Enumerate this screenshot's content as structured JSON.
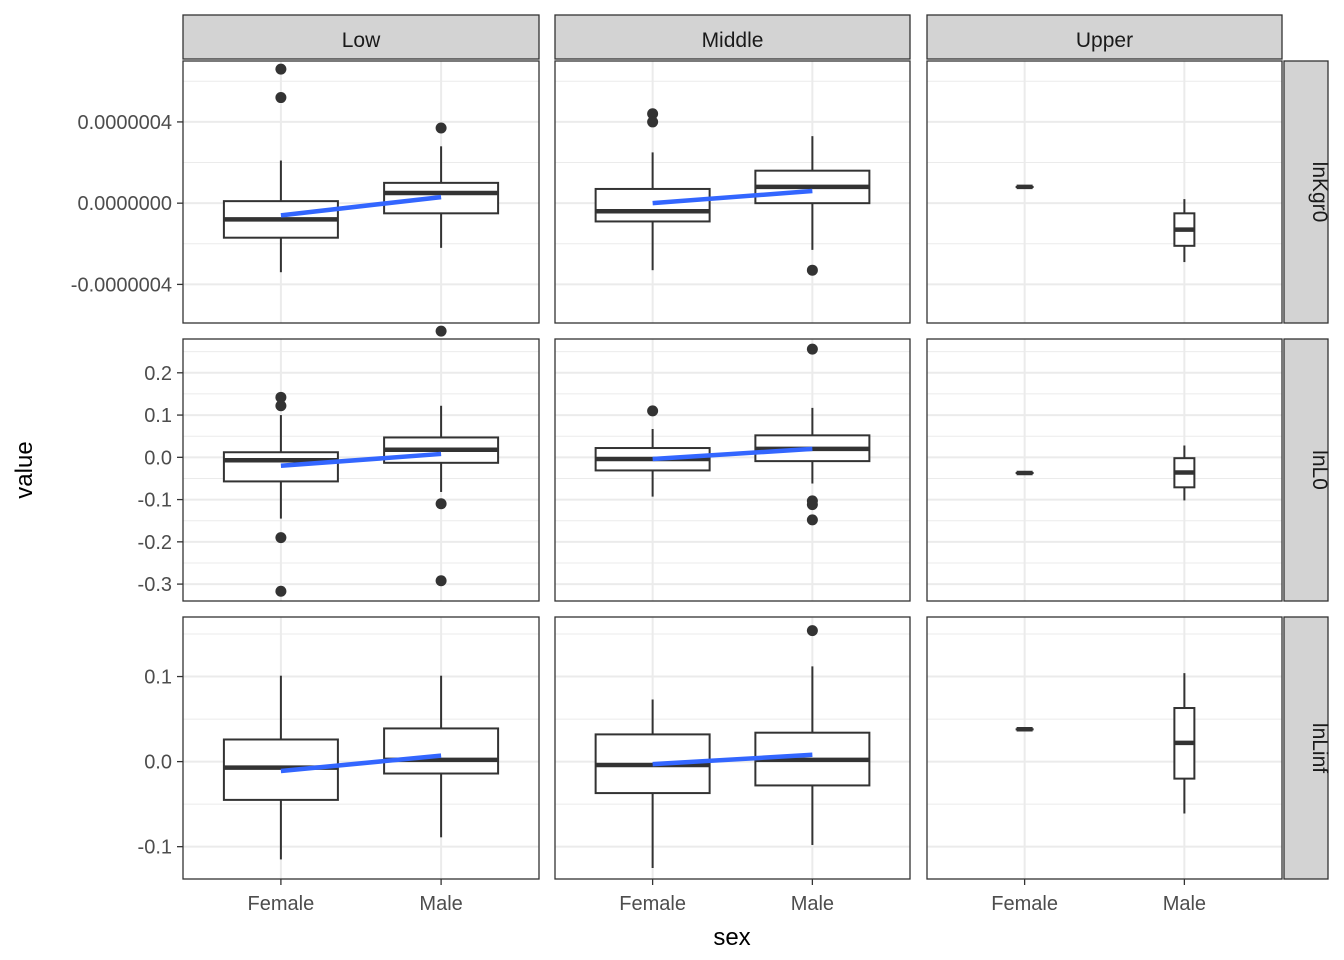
{
  "chart_data": {
    "type": "boxplot",
    "xlabel": "sex",
    "ylabel": "value",
    "categories": [
      "Female",
      "Male"
    ],
    "columns": [
      "Low",
      "Middle",
      "Upper"
    ],
    "rows": [
      {
        "label": "lnKgr0",
        "ylim": [
          -5.9e-07,
          7e-07
        ],
        "ticks": [
          -4e-07,
          0.0,
          4e-07
        ],
        "tick_labels": [
          "-0.0000004",
          "0.0000000",
          "0.0000004"
        ],
        "minor_ticks": [
          -6e-07,
          -2e-07,
          2e-07,
          6e-07
        ],
        "panels": [
          {
            "column": "Low",
            "boxes": [
              {
                "category": "Female",
                "lower": -3.4e-07,
                "q1": -1.7e-07,
                "median": -8e-08,
                "q3": 1e-08,
                "upper": 2.1e-07,
                "outliers": [
                  6.6e-07,
                  5.2e-07
                ]
              },
              {
                "category": "Male",
                "lower": -2.2e-07,
                "q1": -5e-08,
                "median": 5e-08,
                "q3": 1e-07,
                "upper": 2.8e-07,
                "outliers": [
                  3.7e-07,
                  -6.3e-07
                ]
              }
            ],
            "trend": [
              -6e-08,
              3e-08
            ]
          },
          {
            "column": "Middle",
            "boxes": [
              {
                "category": "Female",
                "lower": -3.3e-07,
                "q1": -9e-08,
                "median": -4e-08,
                "q3": 7e-08,
                "upper": 2.5e-07,
                "outliers": [
                  4.4e-07,
                  4e-07
                ]
              },
              {
                "category": "Male",
                "lower": -2.3e-07,
                "q1": 0.0,
                "median": 8e-08,
                "q3": 1.6e-07,
                "upper": 3.3e-07,
                "outliers": [
                  -3.3e-07
                ]
              }
            ],
            "trend": [
              0.0,
              6e-08
            ]
          },
          {
            "column": "Upper",
            "boxes": [
              {
                "category": "Female",
                "lower": 8e-08,
                "q1": 8e-08,
                "median": 8e-08,
                "q3": 8e-08,
                "upper": 8e-08,
                "outliers": []
              },
              {
                "category": "Male",
                "lower": -2.9e-07,
                "q1": -2.1e-07,
                "median": -1.3e-07,
                "q3": -5e-08,
                "upper": 2e-08,
                "outliers": []
              }
            ],
            "trend": null
          }
        ]
      },
      {
        "label": "lnL0",
        "ylim": [
          -0.34,
          0.28
        ],
        "ticks": [
          -0.3,
          -0.2,
          -0.1,
          0.0,
          0.1,
          0.2
        ],
        "tick_labels": [
          "-0.3",
          "-0.2",
          "-0.1",
          "0.0",
          "0.1",
          "0.2"
        ],
        "minor_ticks": [
          -0.25,
          -0.15,
          -0.05,
          0.05,
          0.15,
          0.25
        ],
        "panels": [
          {
            "column": "Low",
            "boxes": [
              {
                "category": "Female",
                "lower": -0.145,
                "q1": -0.057,
                "median": -0.007,
                "q3": 0.012,
                "upper": 0.1,
                "outliers": [
                  0.142,
                  0.122,
                  -0.19,
                  -0.317
                ]
              },
              {
                "category": "Male",
                "lower": -0.082,
                "q1": -0.013,
                "median": 0.018,
                "q3": 0.047,
                "upper": 0.122,
                "outliers": [
                  -0.11,
                  -0.292
                ]
              }
            ],
            "trend": [
              -0.02,
              0.008
            ]
          },
          {
            "column": "Middle",
            "boxes": [
              {
                "category": "Female",
                "lower": -0.093,
                "q1": -0.031,
                "median": -0.004,
                "q3": 0.022,
                "upper": 0.067,
                "outliers": [
                  0.11
                ]
              },
              {
                "category": "Male",
                "lower": -0.062,
                "q1": -0.009,
                "median": 0.02,
                "q3": 0.052,
                "upper": 0.117,
                "outliers": [
                  0.256,
                  -0.103,
                  -0.112,
                  -0.148
                ]
              }
            ],
            "trend": [
              -0.004,
              0.02
            ]
          },
          {
            "column": "Upper",
            "boxes": [
              {
                "category": "Female",
                "lower": -0.037,
                "q1": -0.037,
                "median": -0.037,
                "q3": -0.037,
                "upper": -0.037,
                "outliers": []
              },
              {
                "category": "Male",
                "lower": -0.102,
                "q1": -0.071,
                "median": -0.036,
                "q3": -0.002,
                "upper": 0.028,
                "outliers": []
              }
            ],
            "trend": null
          }
        ]
      },
      {
        "label": "lnLinf",
        "ylim": [
          -0.138,
          0.17
        ],
        "ticks": [
          -0.1,
          0.0,
          0.1
        ],
        "tick_labels": [
          "-0.1",
          "0.0",
          "0.1"
        ],
        "minor_ticks": [
          -0.05,
          0.05,
          0.15
        ],
        "panels": [
          {
            "column": "Low",
            "boxes": [
              {
                "category": "Female",
                "lower": -0.115,
                "q1": -0.045,
                "median": -0.007,
                "q3": 0.026,
                "upper": 0.101,
                "outliers": []
              },
              {
                "category": "Male",
                "lower": -0.089,
                "q1": -0.014,
                "median": 0.002,
                "q3": 0.039,
                "upper": 0.101,
                "outliers": []
              }
            ],
            "trend": [
              -0.011,
              0.007
            ]
          },
          {
            "column": "Middle",
            "boxes": [
              {
                "category": "Female",
                "lower": -0.125,
                "q1": -0.037,
                "median": -0.004,
                "q3": 0.032,
                "upper": 0.073,
                "outliers": []
              },
              {
                "category": "Male",
                "lower": -0.098,
                "q1": -0.028,
                "median": 0.002,
                "q3": 0.034,
                "upper": 0.112,
                "outliers": [
                  0.154
                ]
              }
            ],
            "trend": [
              -0.003,
              0.008
            ]
          },
          {
            "column": "Upper",
            "boxes": [
              {
                "category": "Female",
                "lower": 0.038,
                "q1": 0.038,
                "median": 0.038,
                "q3": 0.038,
                "upper": 0.038,
                "outliers": []
              },
              {
                "category": "Male",
                "lower": -0.061,
                "q1": -0.02,
                "median": 0.022,
                "q3": 0.063,
                "upper": 0.104,
                "outliers": []
              }
            ],
            "trend": null
          }
        ]
      }
    ]
  },
  "colors": {
    "box_stroke": "#333333",
    "trend_line": "#3366ff",
    "strip_fill": "#d3d3d3",
    "grid": "#ebebeb"
  }
}
